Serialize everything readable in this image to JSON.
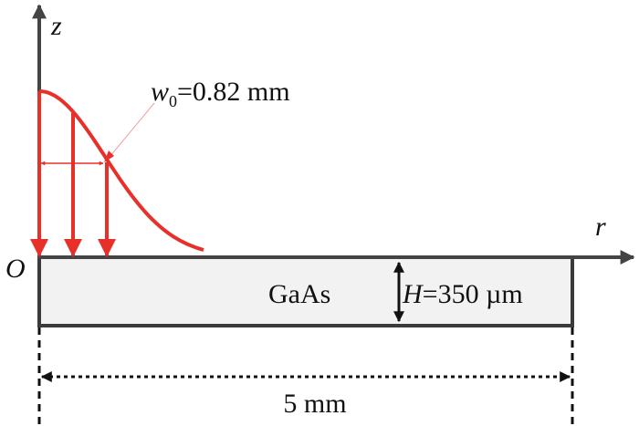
{
  "axes": {
    "z_label": "z",
    "r_label": "r",
    "origin_label": "O"
  },
  "beam": {
    "waist_symbol": "w",
    "waist_subscript": "0",
    "waist_value": "=0.82 mm",
    "color": "#e8302a"
  },
  "sample": {
    "material": "GaAs",
    "thickness_symbol": "H",
    "thickness_value": "=350 µm",
    "fill": "#f2f2f2",
    "border": "#3b3b3b"
  },
  "dimension": {
    "width_label": "5 mm"
  }
}
